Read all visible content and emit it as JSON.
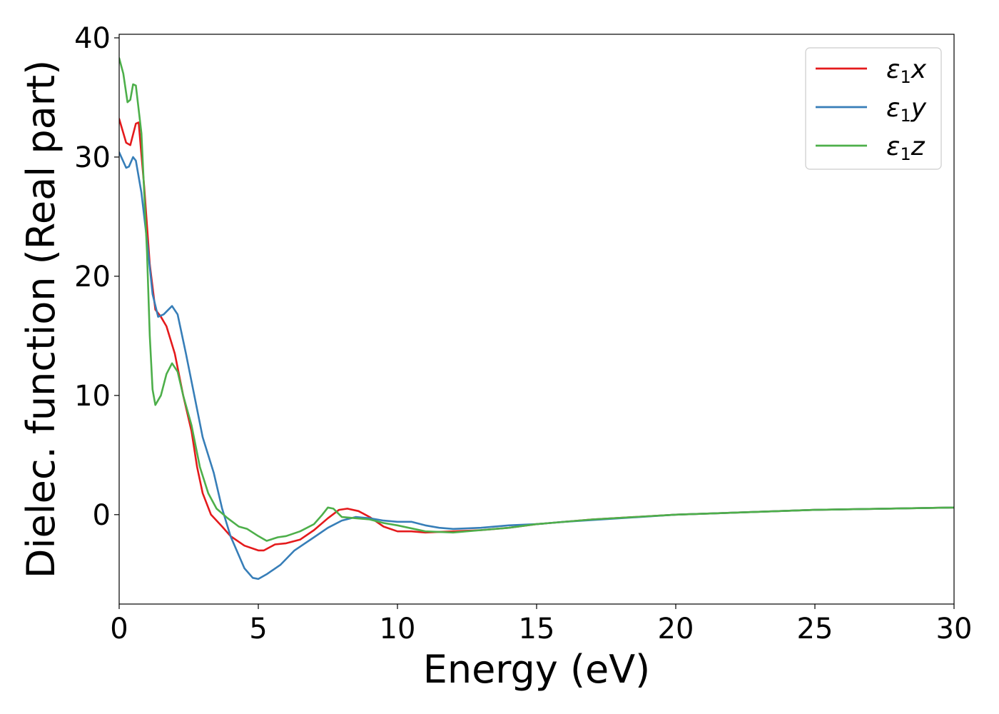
{
  "chart_data": {
    "type": "line",
    "title": "",
    "xlabel": "Energy (eV)",
    "ylabel": "Dielec. function (Real part)",
    "xlim": [
      0,
      30
    ],
    "ylim": [
      -7.5,
      40.3
    ],
    "xticks": [
      "0",
      "5",
      "10",
      "15",
      "20",
      "25",
      "30"
    ],
    "yticks": [
      "0",
      "10",
      "20",
      "30",
      "40"
    ],
    "grid": false,
    "legend_position": "top-right",
    "series": [
      {
        "name": "ε1x",
        "name_base": "ε",
        "name_sub": "1",
        "name_var": "x",
        "color": "#e41a1c",
        "points": [
          [
            0,
            33.2
          ],
          [
            0.25,
            31.2
          ],
          [
            0.4,
            31.0
          ],
          [
            0.6,
            32.8
          ],
          [
            0.7,
            32.9
          ],
          [
            0.9,
            27.5
          ],
          [
            1.1,
            21
          ],
          [
            1.3,
            17.2
          ],
          [
            1.5,
            16.6
          ],
          [
            1.7,
            15.8
          ],
          [
            2.0,
            13.5
          ],
          [
            2.3,
            10
          ],
          [
            2.6,
            7
          ],
          [
            2.8,
            4
          ],
          [
            3.0,
            1.8
          ],
          [
            3.3,
            0
          ],
          [
            3.7,
            -1
          ],
          [
            4.0,
            -1.8
          ],
          [
            4.5,
            -2.6
          ],
          [
            5.0,
            -3
          ],
          [
            5.2,
            -3
          ],
          [
            5.6,
            -2.5
          ],
          [
            6.0,
            -2.4
          ],
          [
            6.5,
            -2.1
          ],
          [
            7.0,
            -1.3
          ],
          [
            7.5,
            -0.3
          ],
          [
            7.9,
            0.4
          ],
          [
            8.2,
            0.5
          ],
          [
            8.6,
            0.3
          ],
          [
            9.0,
            -0.2
          ],
          [
            9.5,
            -1
          ],
          [
            10.0,
            -1.4
          ],
          [
            10.5,
            -1.4
          ],
          [
            11.0,
            -1.5
          ],
          [
            12.0,
            -1.4
          ],
          [
            13.0,
            -1.3
          ],
          [
            14.0,
            -1.1
          ],
          [
            15.0,
            -0.8
          ],
          [
            17.0,
            -0.4
          ],
          [
            20.0,
            0
          ],
          [
            25.0,
            0.4
          ],
          [
            30.0,
            0.6
          ]
        ]
      },
      {
        "name": "ε1y",
        "name_base": "ε",
        "name_sub": "1",
        "name_var": "y",
        "color": "#377eb8",
        "points": [
          [
            0,
            30.4
          ],
          [
            0.25,
            29.1
          ],
          [
            0.35,
            29.2
          ],
          [
            0.5,
            30
          ],
          [
            0.6,
            29.7
          ],
          [
            0.8,
            27
          ],
          [
            1.0,
            23
          ],
          [
            1.2,
            18.5
          ],
          [
            1.4,
            16.6
          ],
          [
            1.6,
            16.8
          ],
          [
            1.9,
            17.5
          ],
          [
            2.1,
            16.8
          ],
          [
            2.4,
            13.5
          ],
          [
            2.7,
            10
          ],
          [
            3.0,
            6.5
          ],
          [
            3.4,
            3.5
          ],
          [
            3.7,
            0.5
          ],
          [
            4.0,
            -1.8
          ],
          [
            4.5,
            -4.5
          ],
          [
            4.8,
            -5.3
          ],
          [
            5.0,
            -5.4
          ],
          [
            5.3,
            -5
          ],
          [
            5.8,
            -4.2
          ],
          [
            6.3,
            -3
          ],
          [
            7.0,
            -1.9
          ],
          [
            7.5,
            -1.1
          ],
          [
            8.0,
            -0.5
          ],
          [
            8.5,
            -0.2
          ],
          [
            9.0,
            -0.3
          ],
          [
            9.5,
            -0.5
          ],
          [
            10.0,
            -0.6
          ],
          [
            10.5,
            -0.6
          ],
          [
            11.0,
            -0.9
          ],
          [
            11.5,
            -1.1
          ],
          [
            12.0,
            -1.2
          ],
          [
            13.0,
            -1.1
          ],
          [
            14.0,
            -0.9
          ],
          [
            15.0,
            -0.8
          ],
          [
            16.0,
            -0.6
          ],
          [
            18.0,
            -0.3
          ],
          [
            20.0,
            0
          ],
          [
            25.0,
            0.4
          ],
          [
            30.0,
            0.6
          ]
        ]
      },
      {
        "name": "ε1z",
        "name_base": "ε",
        "name_sub": "1",
        "name_var": "z",
        "color": "#4daf4a",
        "points": [
          [
            0,
            38.3
          ],
          [
            0.15,
            37
          ],
          [
            0.3,
            34.6
          ],
          [
            0.4,
            34.8
          ],
          [
            0.5,
            36.1
          ],
          [
            0.6,
            36
          ],
          [
            0.8,
            32
          ],
          [
            0.9,
            27
          ],
          [
            1.0,
            22
          ],
          [
            1.1,
            15
          ],
          [
            1.2,
            10.5
          ],
          [
            1.3,
            9.2
          ],
          [
            1.5,
            10
          ],
          [
            1.7,
            11.8
          ],
          [
            1.9,
            12.7
          ],
          [
            2.1,
            12
          ],
          [
            2.3,
            10
          ],
          [
            2.6,
            7.5
          ],
          [
            2.9,
            4
          ],
          [
            3.2,
            1.8
          ],
          [
            3.5,
            0.5
          ],
          [
            3.9,
            -0.3
          ],
          [
            4.3,
            -1
          ],
          [
            4.6,
            -1.2
          ],
          [
            5.0,
            -1.8
          ],
          [
            5.3,
            -2.2
          ],
          [
            5.7,
            -1.9
          ],
          [
            6.0,
            -1.8
          ],
          [
            6.5,
            -1.4
          ],
          [
            7.0,
            -0.8
          ],
          [
            7.3,
            0
          ],
          [
            7.5,
            0.6
          ],
          [
            7.7,
            0.5
          ],
          [
            8.0,
            -0.2
          ],
          [
            8.5,
            -0.3
          ],
          [
            9.0,
            -0.4
          ],
          [
            9.5,
            -0.7
          ],
          [
            10.0,
            -0.9
          ],
          [
            11.0,
            -1.4
          ],
          [
            12.0,
            -1.5
          ],
          [
            13.0,
            -1.3
          ],
          [
            14.0,
            -1.1
          ],
          [
            15.0,
            -0.8
          ],
          [
            17.0,
            -0.4
          ],
          [
            20.0,
            0
          ],
          [
            25.0,
            0.4
          ],
          [
            30.0,
            0.6
          ]
        ]
      }
    ]
  }
}
